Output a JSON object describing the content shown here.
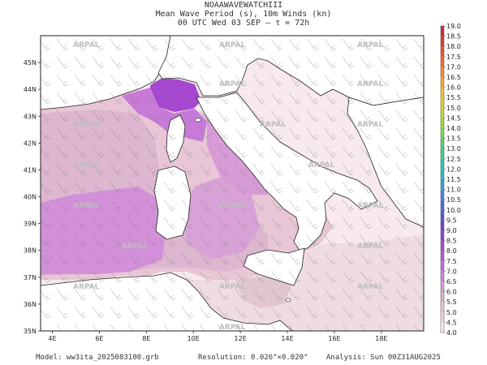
{
  "header": {
    "title": "NOAAWAVEWATCHIII",
    "subtitle": "Mean Wave Period (s), 10m Winds (kn)",
    "time_line": "00 UTC Wed 03 SEP  –  τ = 72h"
  },
  "map": {
    "lon_ticks": [
      "4E",
      "6E",
      "8E",
      "10E",
      "12E",
      "14E",
      "16E",
      "18E"
    ],
    "lat_ticks": [
      "45N",
      "44N",
      "43N",
      "42N",
      "41N",
      "40N",
      "39N",
      "38N",
      "37N",
      "36N",
      "35N"
    ],
    "lon_range": [
      3.5,
      19.8
    ],
    "lat_range": [
      35,
      46
    ],
    "watermark": "ARPAL"
  },
  "colorbar": {
    "levels": [
      "4.0",
      "4.5",
      "5.0",
      "5.5",
      "6.0",
      "6.5",
      "7.0",
      "7.5",
      "8.0",
      "8.5",
      "9.0",
      "9.5",
      "10.0",
      "10.5",
      "11.0",
      "11.5",
      "12.0",
      "12.5",
      "13.0",
      "13.5",
      "14.0",
      "14.5",
      "15.0",
      "15.5",
      "16.0",
      "16.5",
      "17.0",
      "17.5",
      "18.0",
      "18.5",
      "19.0"
    ],
    "colors": [
      "#f6e8ee",
      "#eed3df",
      "#e8c2d2",
      "#dcb0c8",
      "#d79bd0",
      "#cf82d7",
      "#c66bd9",
      "#b857d6",
      "#a44ad0",
      "#8b45c9",
      "#6f46c7",
      "#5658cc",
      "#4a6fd1",
      "#3f89d4",
      "#35a0d4",
      "#2fb4c8",
      "#2fc3ad",
      "#3bcd8e",
      "#55d36b",
      "#79d64e",
      "#a0d83a",
      "#c4d633",
      "#e0cf30",
      "#efbf2f",
      "#f4a52f",
      "#f38930",
      "#ef6d31",
      "#e75333",
      "#dc3c35",
      "#cc2a37"
    ]
  },
  "footer": {
    "model": "Model: ww3ita_2025083100.grb",
    "resolution": "Resolution: 0.026°×0.020°",
    "analysis": "Analysis: Sun 00Z31AUG2025"
  }
}
